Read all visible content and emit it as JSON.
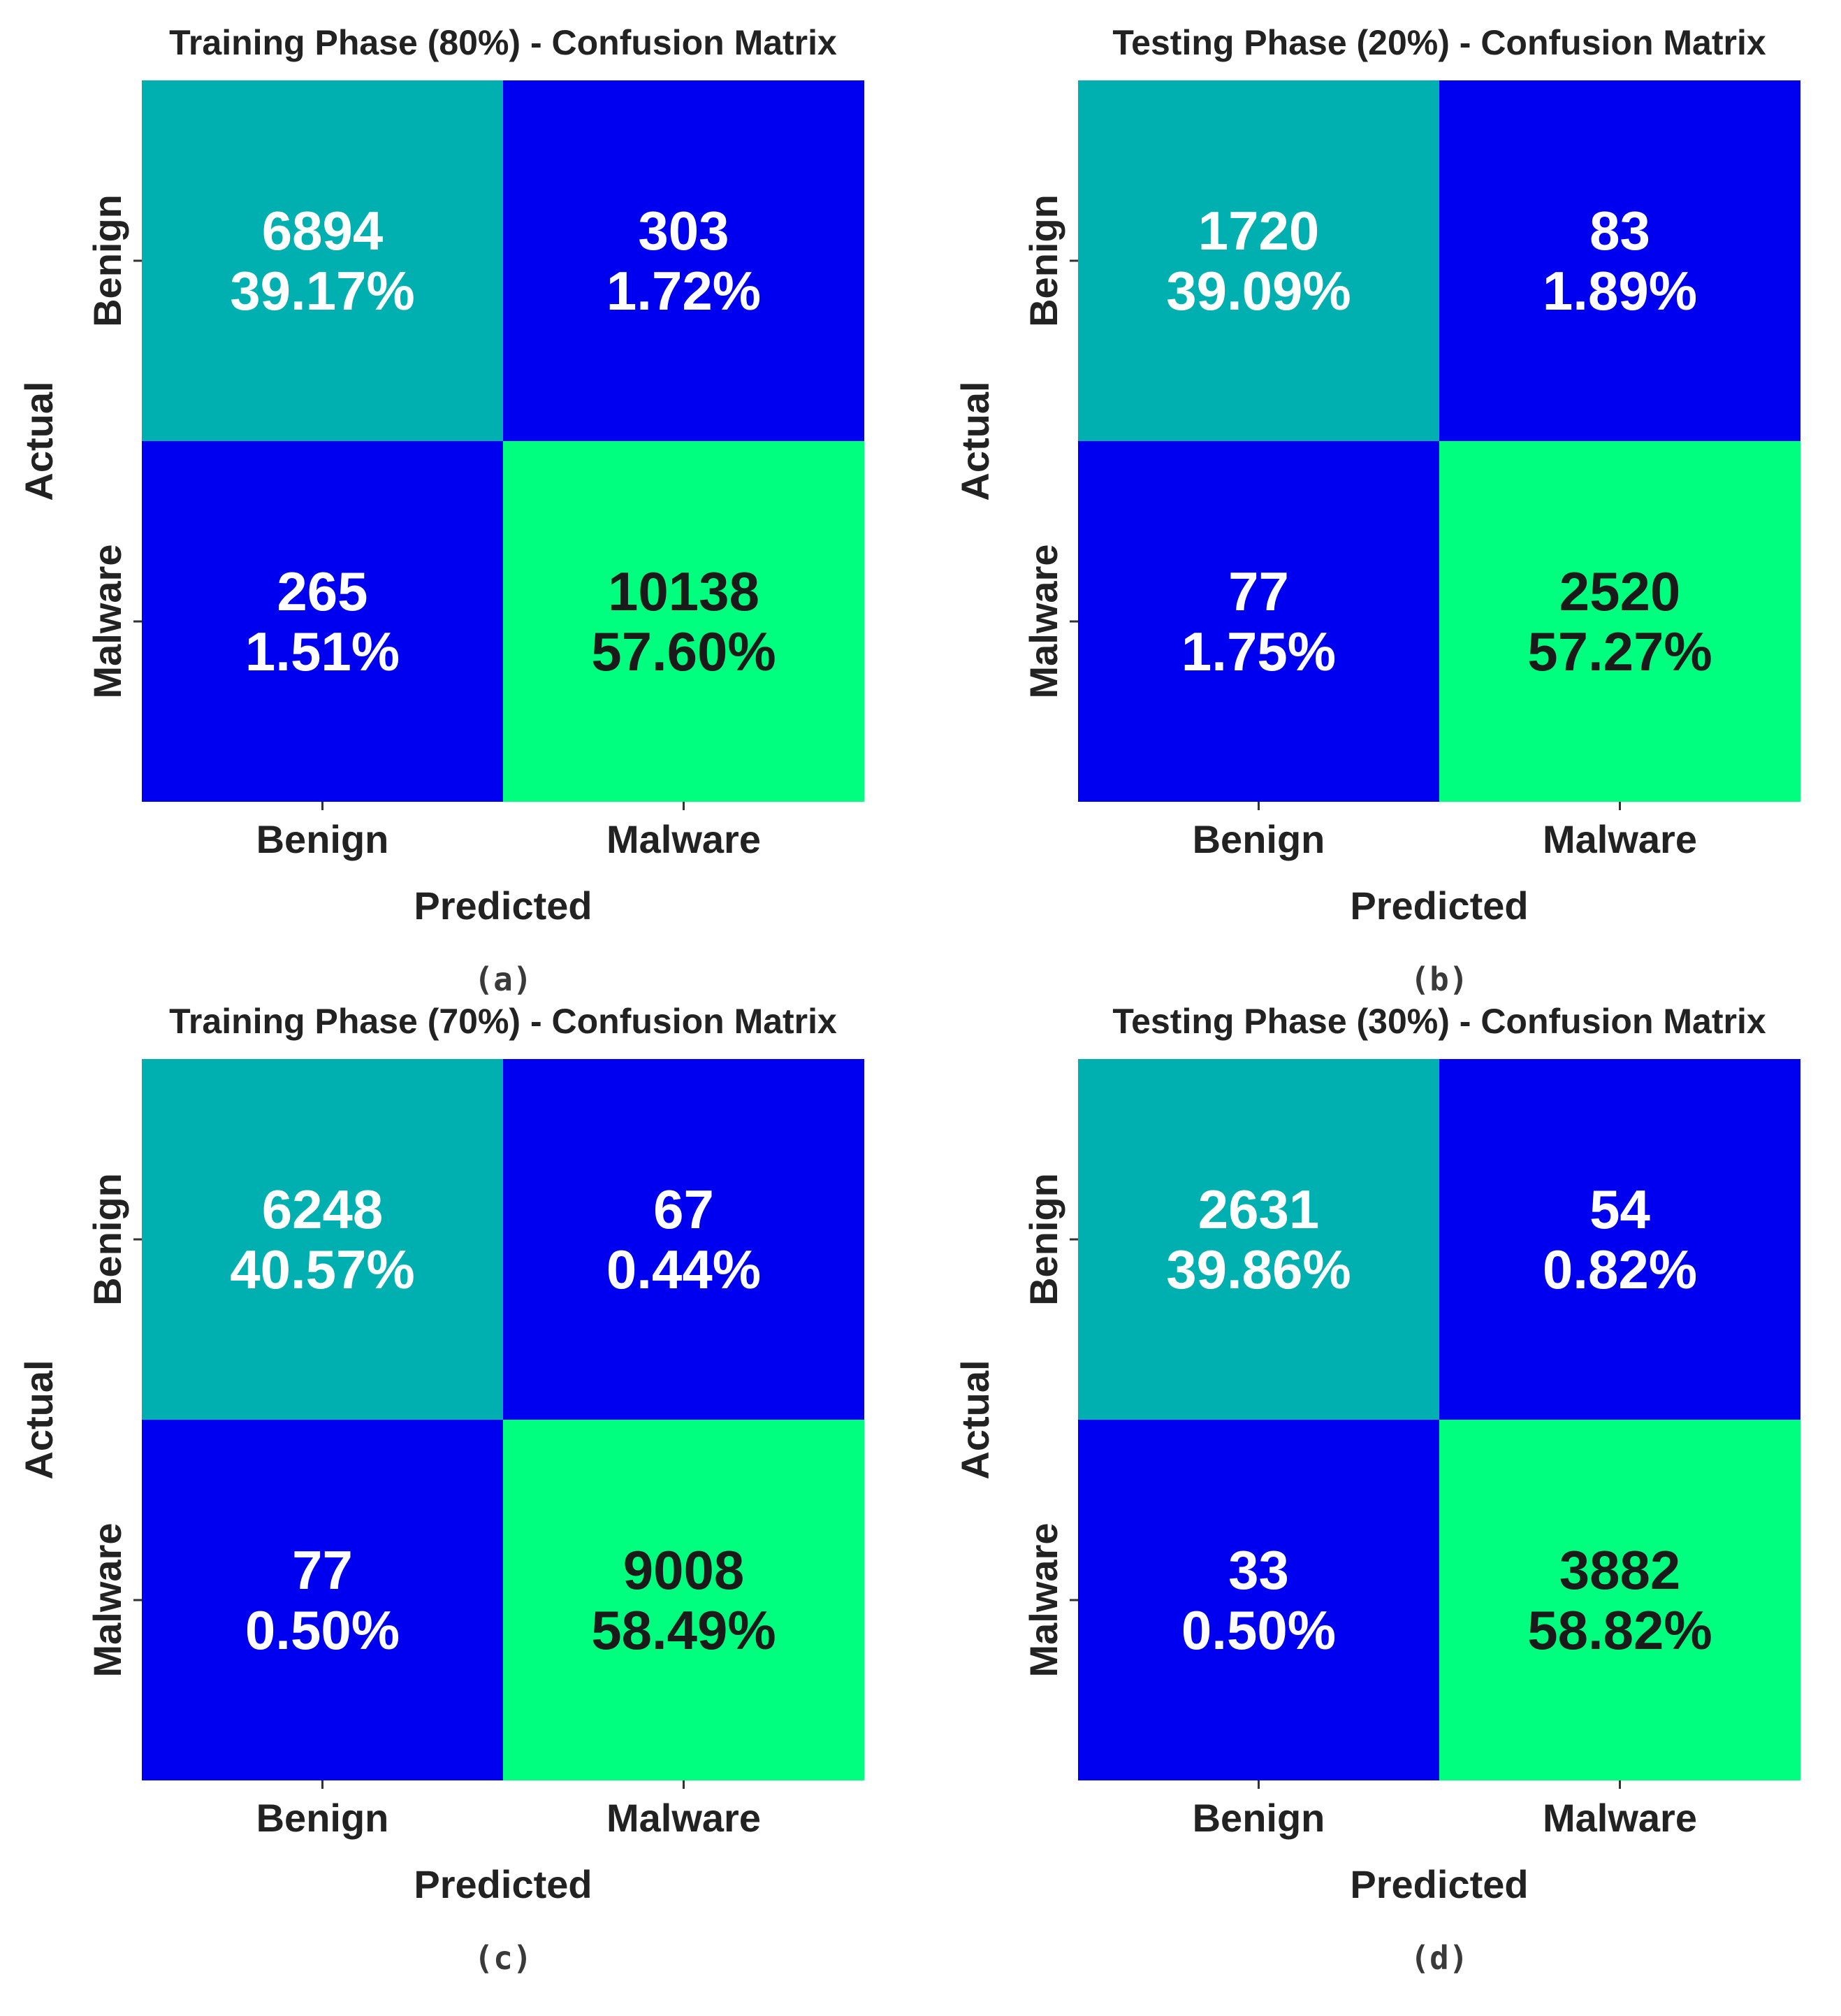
{
  "figure": {
    "colors": {
      "tn": "#00AFAF",
      "error": "#0000F0",
      "tp": "#00FF7F",
      "light_text": "#FFFFFF",
      "dark_text": "#1A1A1A"
    }
  },
  "chart_data": [
    {
      "type": "heatmap",
      "caption": "(a)",
      "title": "Training Phase (80%) - Confusion Matrix",
      "xlabel": "Predicted",
      "ylabel": "Actual",
      "x_categories": [
        "Benign",
        "Malware"
      ],
      "y_categories": [
        "Benign",
        "Malware"
      ],
      "counts": [
        [
          6894,
          303
        ],
        [
          265,
          10138
        ]
      ],
      "percents": [
        [
          "39.17%",
          "1.72%"
        ],
        [
          "1.51%",
          "57.60%"
        ]
      ]
    },
    {
      "type": "heatmap",
      "caption": "(b)",
      "title": "Testing Phase (20%) - Confusion Matrix",
      "xlabel": "Predicted",
      "ylabel": "Actual",
      "x_categories": [
        "Benign",
        "Malware"
      ],
      "y_categories": [
        "Benign",
        "Malware"
      ],
      "counts": [
        [
          1720,
          83
        ],
        [
          77,
          2520
        ]
      ],
      "percents": [
        [
          "39.09%",
          "1.89%"
        ],
        [
          "1.75%",
          "57.27%"
        ]
      ]
    },
    {
      "type": "heatmap",
      "caption": "(c)",
      "title": "Training Phase (70%) - Confusion Matrix",
      "xlabel": "Predicted",
      "ylabel": "Actual",
      "x_categories": [
        "Benign",
        "Malware"
      ],
      "y_categories": [
        "Benign",
        "Malware"
      ],
      "counts": [
        [
          6248,
          67
        ],
        [
          77,
          9008
        ]
      ],
      "percents": [
        [
          "40.57%",
          "0.44%"
        ],
        [
          "0.50%",
          "58.49%"
        ]
      ]
    },
    {
      "type": "heatmap",
      "caption": "(d)",
      "title": "Testing Phase (30%) - Confusion Matrix",
      "xlabel": "Predicted",
      "ylabel": "Actual",
      "x_categories": [
        "Benign",
        "Malware"
      ],
      "y_categories": [
        "Benign",
        "Malware"
      ],
      "counts": [
        [
          2631,
          54
        ],
        [
          33,
          3882
        ]
      ],
      "percents": [
        [
          "39.86%",
          "0.82%"
        ],
        [
          "0.50%",
          "58.82%"
        ]
      ]
    }
  ]
}
